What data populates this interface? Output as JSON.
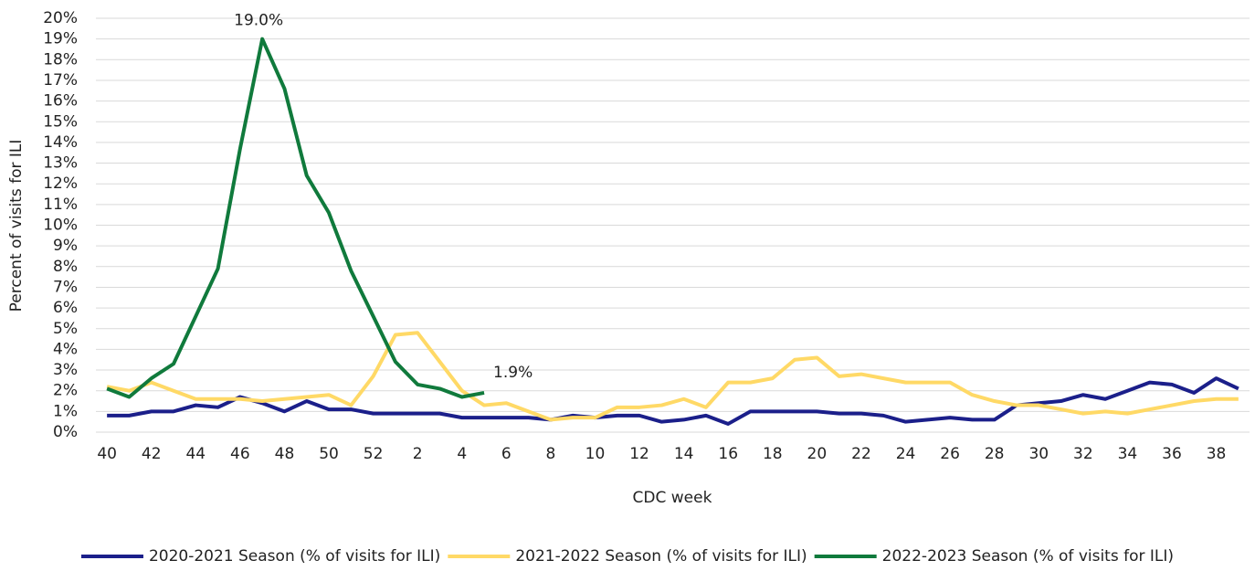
{
  "chart_data": {
    "type": "line",
    "y_label": "Percent of visits for ILI",
    "x_label": "CDC week",
    "categories": [
      "40",
      null,
      "42",
      null,
      "44",
      null,
      "46",
      null,
      "48",
      null,
      "50",
      null,
      "52",
      null,
      "2",
      null,
      "4",
      null,
      "6",
      null,
      "8",
      null,
      "10",
      null,
      "12",
      null,
      "14",
      null,
      "16",
      null,
      "18",
      null,
      "20",
      null,
      "22",
      null,
      "24",
      null,
      "26",
      null,
      "28",
      null,
      "30",
      null,
      "32",
      null,
      "34",
      null,
      "36",
      null,
      "38",
      null
    ],
    "ylim": [
      0,
      20
    ],
    "yticks": [
      {
        "value": 0,
        "label": "0%"
      },
      {
        "value": 1,
        "label": "1%"
      },
      {
        "value": 2,
        "label": "2%"
      },
      {
        "value": 3,
        "label": "3%"
      },
      {
        "value": 4,
        "label": "4%"
      },
      {
        "value": 5,
        "label": "5%"
      },
      {
        "value": 6,
        "label": "6%"
      },
      {
        "value": 7,
        "label": "7%"
      },
      {
        "value": 8,
        "label": "8%"
      },
      {
        "value": 9,
        "label": "9%"
      },
      {
        "value": 10,
        "label": "10%"
      },
      {
        "value": 11,
        "label": "11%"
      },
      {
        "value": 12,
        "label": "12%"
      },
      {
        "value": 13,
        "label": "13%"
      },
      {
        "value": 14,
        "label": "14%"
      },
      {
        "value": 15,
        "label": "15%"
      },
      {
        "value": 16,
        "label": "16%"
      },
      {
        "value": 17,
        "label": "17%"
      },
      {
        "value": 18,
        "label": "18%"
      },
      {
        "value": 19,
        "label": "19%"
      },
      {
        "value": 20,
        "label": "20%"
      }
    ],
    "grid": true,
    "legend": "bottom",
    "series": [
      {
        "name": "2020-2021 Season (% of visits for ILI)",
        "color": "#1b1f8a",
        "values": [
          0.8,
          0.8,
          1.0,
          1.0,
          1.3,
          1.2,
          1.7,
          1.4,
          1.0,
          1.5,
          1.1,
          1.1,
          0.9,
          0.9,
          0.9,
          0.9,
          0.7,
          0.7,
          0.7,
          0.7,
          0.6,
          0.8,
          0.7,
          0.8,
          0.8,
          0.5,
          0.6,
          0.8,
          0.4,
          1.0,
          1.0,
          1.0,
          1.0,
          0.9,
          0.9,
          0.8,
          0.5,
          0.6,
          0.7,
          0.6,
          0.6,
          1.3,
          1.4,
          1.5,
          1.8,
          1.6,
          2.0,
          2.4,
          2.3,
          1.9,
          2.6,
          2.1
        ]
      },
      {
        "name": "2021-2022 Season (% of visits for ILI)",
        "color": "#ffd966",
        "values": [
          2.2,
          2.0,
          2.4,
          2.0,
          1.6,
          1.6,
          1.6,
          1.5,
          1.6,
          1.7,
          1.8,
          1.3,
          2.7,
          4.7,
          4.8,
          3.4,
          2.0,
          1.3,
          1.4,
          1.0,
          0.6,
          0.7,
          0.7,
          1.2,
          1.2,
          1.3,
          1.6,
          1.2,
          2.4,
          2.4,
          2.6,
          3.5,
          3.6,
          2.7,
          2.8,
          2.6,
          2.4,
          2.4,
          2.4,
          1.8,
          1.5,
          1.3,
          1.3,
          1.1,
          0.9,
          1.0,
          0.9,
          1.1,
          1.3,
          1.5,
          1.6,
          1.6
        ]
      },
      {
        "name": "2022-2023 Season (% of visits for ILI)",
        "color": "#107a3c",
        "values": [
          2.1,
          1.7,
          2.6,
          3.3,
          5.6,
          7.9,
          13.7,
          19.0,
          16.6,
          12.4,
          10.6,
          7.8,
          5.6,
          3.4,
          2.3,
          2.1,
          1.7,
          1.9,
          null,
          null,
          null,
          null,
          null,
          null,
          null,
          null,
          null,
          null,
          null,
          null,
          null,
          null,
          null,
          null,
          null,
          null,
          null,
          null,
          null,
          null,
          null,
          null,
          null,
          null,
          null,
          null,
          null,
          null,
          null,
          null,
          null,
          null
        ],
        "value_labels": [
          null,
          null,
          null,
          null,
          null,
          null,
          null,
          "19.0%",
          null,
          null,
          null,
          null,
          null,
          null,
          null,
          null,
          null,
          "1.9%",
          null,
          null,
          null,
          null,
          null,
          null,
          null,
          null,
          null,
          null,
          null,
          null,
          null,
          null,
          null,
          null,
          null,
          null,
          null,
          null,
          null,
          null,
          null,
          null,
          null,
          null,
          null,
          null,
          null,
          null,
          null,
          null,
          null,
          null
        ]
      }
    ]
  }
}
